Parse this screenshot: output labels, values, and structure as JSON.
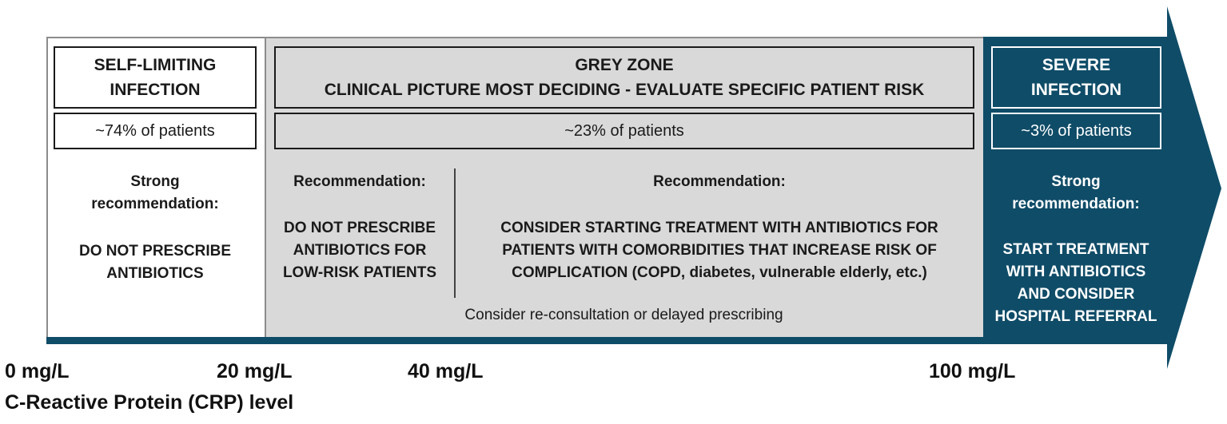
{
  "zones": {
    "low": {
      "title": [
        "SELF-LIMITING",
        "INFECTION"
      ],
      "share": "~74% of patients",
      "rec_heading": [
        "Strong",
        "recommendation:"
      ],
      "rec_text": [
        "DO NOT PRESCRIBE",
        "ANTIBIOTICS"
      ]
    },
    "grey": {
      "title": [
        "GREY ZONE",
        "CLINICAL PICTURE MOST DECIDING - EVALUATE SPECIFIC PATIENT RISK"
      ],
      "share": "~23% of patients",
      "left_heading": "Recommendation:",
      "left_text": [
        "DO NOT PRESCRIBE",
        "ANTIBIOTICS FOR",
        "LOW-RISK PATIENTS"
      ],
      "right_heading": "Recommendation:",
      "right_text": [
        "CONSIDER STARTING TREATMENT WITH ANTIBIOTICS FOR",
        "PATIENTS WITH COMORBIDITIES THAT INCREASE RISK OF",
        "COMPLICATION (COPD, diabetes, vulnerable elderly, etc.)"
      ],
      "footnote": "Consider re-consultation or delayed prescribing"
    },
    "severe": {
      "title": [
        "SEVERE",
        "INFECTION"
      ],
      "share": "~3% of patients",
      "rec_heading": [
        "Strong",
        "recommendation:"
      ],
      "rec_text": [
        "START TREATMENT",
        "WITH ANTIBIOTICS",
        "AND CONSIDER",
        "HOSPITAL REFERRAL"
      ]
    }
  },
  "axis": {
    "ticks": [
      "0 mg/L",
      "20 mg/L",
      "40 mg/L",
      "100 mg/L"
    ],
    "title": "C-Reactive Protein (CRP) level"
  },
  "colors": {
    "severe_fill": "#0f4c68",
    "grey_fill": "#d9d9d9",
    "low_fill": "#ffffff"
  }
}
